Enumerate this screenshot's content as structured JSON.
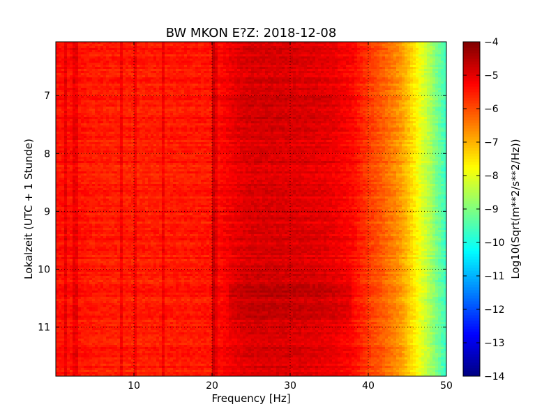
{
  "chart_data": {
    "type": "heatmap",
    "title": "BW MKON E?Z: 2018-12-08",
    "xlabel": "Frequency [Hz]",
    "ylabel": "Lokalzeit (UTC + 1 Stunde)",
    "xlim": [
      0,
      50
    ],
    "ylim": [
      6.07,
      11.85
    ],
    "y_inverted": true,
    "x_ticks": [
      10,
      20,
      30,
      40,
      50
    ],
    "x_tick_labels": [
      "10",
      "20",
      "30",
      "40",
      "50"
    ],
    "y_ticks": [
      7,
      8,
      9,
      10,
      11
    ],
    "y_tick_labels": [
      "7",
      "8",
      "9",
      "10",
      "11"
    ],
    "grid": true,
    "colormap": "jet",
    "colorbar": {
      "label": "Log10(Sqrt(m**2/s**2/Hz))",
      "range": [
        -14,
        -4
      ],
      "ticks": [
        -14,
        -13,
        -12,
        -11,
        -10,
        -9,
        -8,
        -7,
        -6,
        -5,
        -4
      ],
      "tick_labels": [
        "−14",
        "−13",
        "−12",
        "−11",
        "−10",
        "−9",
        "−8",
        "−7",
        "−6",
        "−5",
        "−4"
      ]
    },
    "spectrum_profile": {
      "frequency_hz": [
        0,
        2,
        5,
        10,
        15,
        20,
        23,
        25,
        28,
        32,
        35,
        38,
        40,
        42,
        44,
        45,
        46,
        47,
        48,
        49,
        50
      ],
      "level": [
        -5.4,
        -5.4,
        -5.5,
        -5.55,
        -5.5,
        -5.45,
        -5.05,
        -4.9,
        -4.9,
        -4.95,
        -5.05,
        -5.3,
        -5.8,
        -6.2,
        -6.7,
        -7.1,
        -7.6,
        -8.1,
        -8.6,
        -9.2,
        -9.7
      ]
    },
    "persistent_lines_hz": [
      1.2,
      2.5,
      8.5,
      10.2,
      13.8,
      20.1,
      20.4
    ]
  }
}
